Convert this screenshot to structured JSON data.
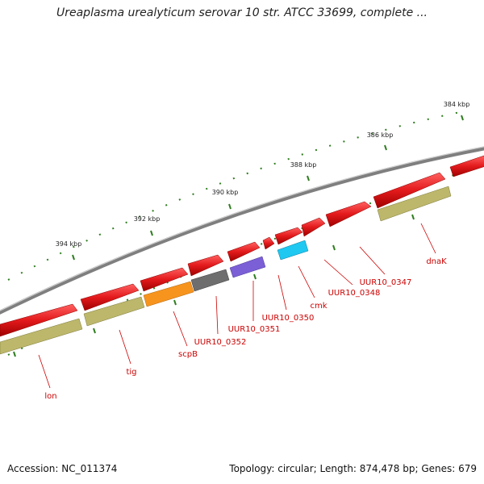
{
  "map": {
    "title": "Ureaplasma urealyticum serovar 10 str. ATCC 33699, complete ...",
    "accession": "Accession: NC_011374",
    "summary": "Topology: circular; Length: 874,478 bp; Genes: 679"
  },
  "scale": {
    "ticks": [
      "384 kbp",
      "386 kbp",
      "388 kbp",
      "390 kbp",
      "392 kbp",
      "394 kbp"
    ]
  },
  "genes": [
    {
      "label": "dnaK",
      "color": "#e31a1c"
    },
    {
      "label": "UUR10_0347",
      "color": "#e31a1c"
    },
    {
      "label": "UUR10_0348",
      "color": "#e31a1c"
    },
    {
      "label": "cmk",
      "color": "#1ec8f0"
    },
    {
      "label": "UUR10_0350",
      "color": "#e31a1c"
    },
    {
      "label": "UUR10_0351",
      "color": "#7b5fd6"
    },
    {
      "label": "UUR10_0352",
      "color": "#6e6e6e"
    },
    {
      "label": "scpB",
      "color": "#f7941d"
    },
    {
      "label": "tig",
      "color": "#bdb76b"
    },
    {
      "label": "lon",
      "color": "#bdb76b"
    }
  ],
  "colors": {
    "cds": "#e31a1c",
    "cog_khaki": "#bdb76b",
    "backbone": "#7f7f7f",
    "scale_green": "#2e7d1f",
    "label_red": "#cc0000"
  }
}
